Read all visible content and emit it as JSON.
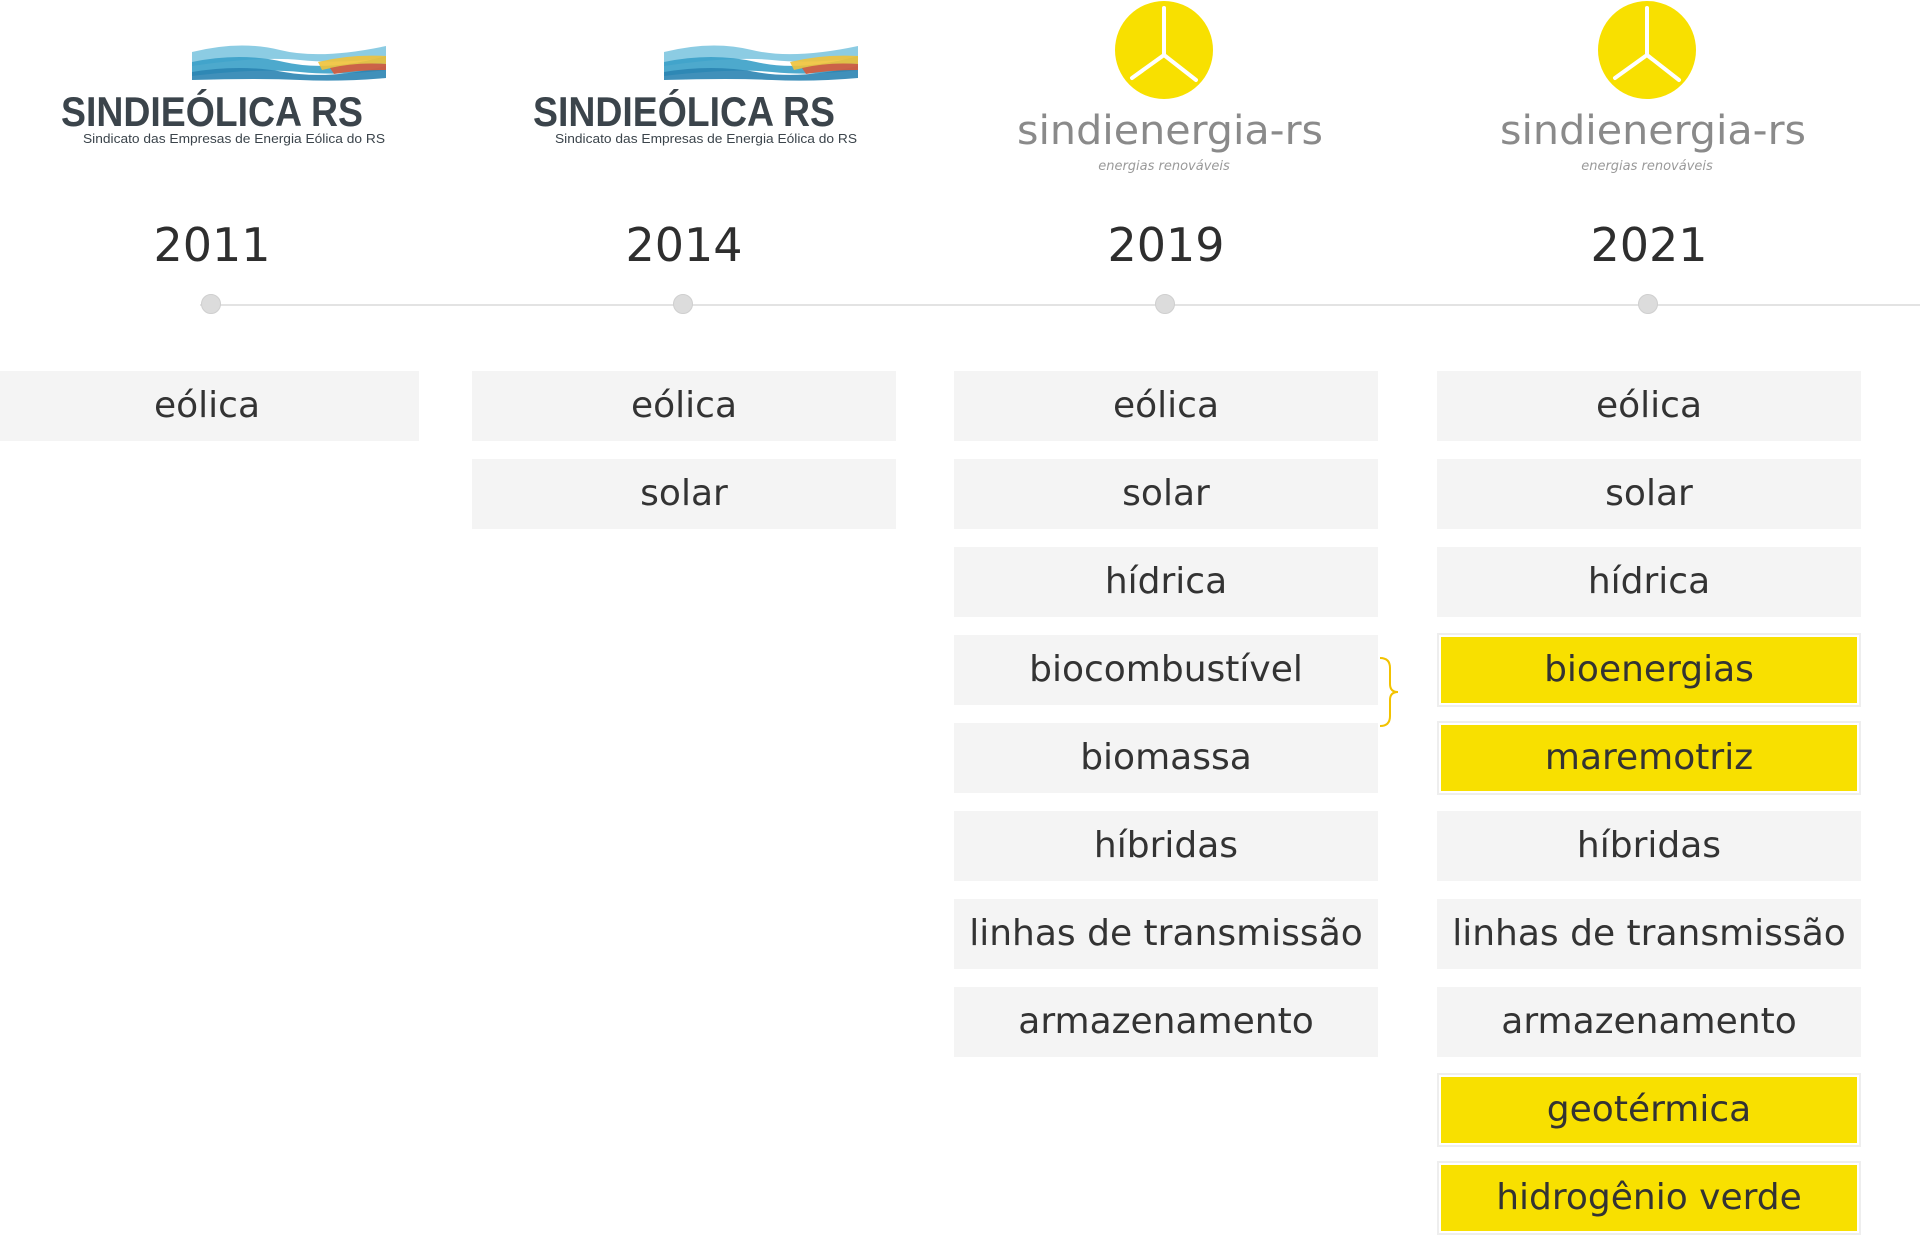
{
  "columns": [
    {
      "year": "2011",
      "logo": {
        "type": "sindieolica",
        "name": "SINDIEÓLICA RS",
        "subtitle": "Sindicato das Empresas de Energia Eólica do RS"
      },
      "items": [
        {
          "label": "eólica",
          "highlight": false
        }
      ]
    },
    {
      "year": "2014",
      "logo": {
        "type": "sindieolica",
        "name": "SINDIEÓLICA RS",
        "subtitle": "Sindicato das Empresas de Energia Eólica do RS"
      },
      "items": [
        {
          "label": "eólica",
          "highlight": false
        },
        {
          "label": "solar",
          "highlight": false
        }
      ]
    },
    {
      "year": "2019",
      "logo": {
        "type": "sindienergia",
        "name": "sindienergia-rs",
        "subtitle": "energias renováveis"
      },
      "items": [
        {
          "label": "eólica",
          "highlight": false
        },
        {
          "label": "solar",
          "highlight": false
        },
        {
          "label": "hídrica",
          "highlight": false
        },
        {
          "label": "biocombustível",
          "highlight": false
        },
        {
          "label": "biomassa",
          "highlight": false
        },
        {
          "label": "híbridas",
          "highlight": false
        },
        {
          "label": "linhas de transmissão",
          "highlight": false
        },
        {
          "label": "armazenamento",
          "highlight": false
        }
      ]
    },
    {
      "year": "2021",
      "logo": {
        "type": "sindienergia",
        "name": "sindienergia-rs",
        "subtitle": "energias renováveis"
      },
      "items": [
        {
          "label": "eólica",
          "highlight": false
        },
        {
          "label": "solar",
          "highlight": false
        },
        {
          "label": "hídrica",
          "highlight": false
        },
        {
          "label": "bioenergias",
          "highlight": true
        },
        {
          "label": "maremotriz",
          "highlight": true
        },
        {
          "label": "híbridas",
          "highlight": false
        },
        {
          "label": "linhas de transmissão",
          "highlight": false
        },
        {
          "label": "armazenamento",
          "highlight": false
        },
        {
          "label": "geotérmica",
          "highlight": true
        },
        {
          "label": "hidrogênio verde",
          "highlight": true
        }
      ]
    }
  ],
  "colors": {
    "highlight": "#f8e000",
    "box": "#f4f4f4",
    "logo_yellow": "#f8e000",
    "logo_gray": "#8a8a8a",
    "logo_dark": "#3b444b",
    "wave_blue": "#3aa0c8"
  }
}
